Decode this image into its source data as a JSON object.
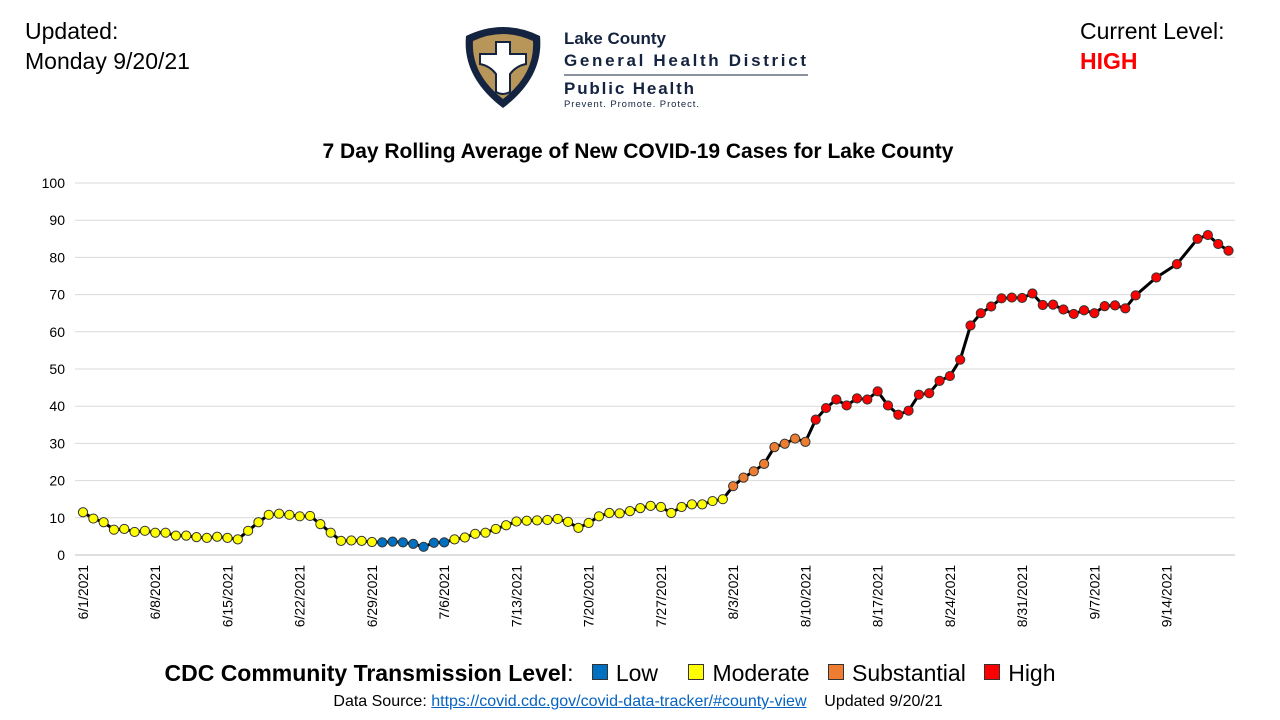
{
  "header": {
    "updated_label": "Updated:",
    "updated_date": "Monday 9/20/21",
    "current_level_label": "Current Level:",
    "current_level_value": "HIGH",
    "current_level_color": "#ff0000"
  },
  "logo": {
    "line1": "Lake County",
    "line2": "General Health District",
    "line3": "Public Health",
    "tagline": "Prevent. Promote. Protect.",
    "colors": {
      "navy": "#14233f",
      "gold": "#b8965a"
    }
  },
  "legend": {
    "title": "CDC Community Transmission Level",
    "colon": ":",
    "items": [
      {
        "label": "Low",
        "color": "#0070c0"
      },
      {
        "label": "Moderate",
        "color": "#ffff00"
      },
      {
        "label": "Substantial",
        "color": "#ed7d31"
      },
      {
        "label": "High",
        "color": "#ff0000"
      }
    ]
  },
  "source": {
    "prefix": "Data Source: ",
    "link": "https://covid.cdc.gov/covid-data-tracker/#county-view",
    "suffix": "Updated 9/20/21"
  },
  "chart_data": {
    "type": "line",
    "title": "7 Day Rolling Average of New COVID-19 Cases for Lake County",
    "xlabel": "",
    "ylabel": "",
    "ylim": [
      0,
      100
    ],
    "y_ticks": [
      "0",
      "10",
      "20",
      "30",
      "40",
      "50",
      "60",
      "70",
      "80",
      "90",
      "100"
    ],
    "x_ticks": [
      "6/1/2021",
      "6/8/2021",
      "6/15/2021",
      "6/22/2021",
      "6/29/2021",
      "7/6/2021",
      "7/13/2021",
      "7/20/2021",
      "7/27/2021",
      "8/3/2021",
      "8/10/2021",
      "8/17/2021",
      "8/24/2021",
      "8/31/2021",
      "9/7/2021",
      "9/14/2021"
    ],
    "grid": "horizontal",
    "line_color": "#000000",
    "points": [
      {
        "d": "6/1",
        "v": 11.5,
        "l": "Moderate"
      },
      {
        "d": "6/2",
        "v": 9.8,
        "l": "Moderate"
      },
      {
        "d": "6/3",
        "v": 8.8,
        "l": "Moderate"
      },
      {
        "d": "6/4",
        "v": 6.8,
        "l": "Moderate"
      },
      {
        "d": "6/5",
        "v": 7.0,
        "l": "Moderate"
      },
      {
        "d": "6/6",
        "v": 6.2,
        "l": "Moderate"
      },
      {
        "d": "6/7",
        "v": 6.5,
        "l": "Moderate"
      },
      {
        "d": "6/8",
        "v": 6.0,
        "l": "Moderate"
      },
      {
        "d": "6/9",
        "v": 6.0,
        "l": "Moderate"
      },
      {
        "d": "6/10",
        "v": 5.2,
        "l": "Moderate"
      },
      {
        "d": "6/11",
        "v": 5.2,
        "l": "Moderate"
      },
      {
        "d": "6/12",
        "v": 4.8,
        "l": "Moderate"
      },
      {
        "d": "6/13",
        "v": 4.6,
        "l": "Moderate"
      },
      {
        "d": "6/14",
        "v": 4.9,
        "l": "Moderate"
      },
      {
        "d": "6/15",
        "v": 4.6,
        "l": "Moderate"
      },
      {
        "d": "6/16",
        "v": 4.2,
        "l": "Moderate"
      },
      {
        "d": "6/17",
        "v": 6.5,
        "l": "Moderate"
      },
      {
        "d": "6/18",
        "v": 8.8,
        "l": "Moderate"
      },
      {
        "d": "6/19",
        "v": 10.8,
        "l": "Moderate"
      },
      {
        "d": "6/20",
        "v": 11.1,
        "l": "Moderate"
      },
      {
        "d": "6/21",
        "v": 10.8,
        "l": "Moderate"
      },
      {
        "d": "6/22",
        "v": 10.4,
        "l": "Moderate"
      },
      {
        "d": "6/23",
        "v": 10.5,
        "l": "Moderate"
      },
      {
        "d": "6/24",
        "v": 8.3,
        "l": "Moderate"
      },
      {
        "d": "6/25",
        "v": 6.0,
        "l": "Moderate"
      },
      {
        "d": "6/26",
        "v": 3.8,
        "l": "Moderate"
      },
      {
        "d": "6/27",
        "v": 3.9,
        "l": "Moderate"
      },
      {
        "d": "6/28",
        "v": 3.8,
        "l": "Moderate"
      },
      {
        "d": "6/29",
        "v": 3.5,
        "l": "Moderate"
      },
      {
        "d": "6/30",
        "v": 3.4,
        "l": "Low"
      },
      {
        "d": "7/1",
        "v": 3.6,
        "l": "Low"
      },
      {
        "d": "7/2",
        "v": 3.4,
        "l": "Low"
      },
      {
        "d": "7/3",
        "v": 3.0,
        "l": "Low"
      },
      {
        "d": "7/4",
        "v": 2.2,
        "l": "Low"
      },
      {
        "d": "7/5",
        "v": 3.3,
        "l": "Low"
      },
      {
        "d": "7/6",
        "v": 3.4,
        "l": "Low"
      },
      {
        "d": "7/7",
        "v": 4.2,
        "l": "Moderate"
      },
      {
        "d": "7/8",
        "v": 4.7,
        "l": "Moderate"
      },
      {
        "d": "7/9",
        "v": 5.7,
        "l": "Moderate"
      },
      {
        "d": "7/10",
        "v": 6.0,
        "l": "Moderate"
      },
      {
        "d": "7/11",
        "v": 7.0,
        "l": "Moderate"
      },
      {
        "d": "7/12",
        "v": 8.0,
        "l": "Moderate"
      },
      {
        "d": "7/13",
        "v": 9.0,
        "l": "Moderate"
      },
      {
        "d": "7/14",
        "v": 9.2,
        "l": "Moderate"
      },
      {
        "d": "7/15",
        "v": 9.3,
        "l": "Moderate"
      },
      {
        "d": "7/16",
        "v": 9.4,
        "l": "Moderate"
      },
      {
        "d": "7/17",
        "v": 9.7,
        "l": "Moderate"
      },
      {
        "d": "7/18",
        "v": 8.9,
        "l": "Moderate"
      },
      {
        "d": "7/19",
        "v": 7.3,
        "l": "Moderate"
      },
      {
        "d": "7/20",
        "v": 8.6,
        "l": "Moderate"
      },
      {
        "d": "7/21",
        "v": 10.4,
        "l": "Moderate"
      },
      {
        "d": "7/22",
        "v": 11.3,
        "l": "Moderate"
      },
      {
        "d": "7/23",
        "v": 11.2,
        "l": "Moderate"
      },
      {
        "d": "7/24",
        "v": 11.8,
        "l": "Moderate"
      },
      {
        "d": "7/25",
        "v": 12.6,
        "l": "Moderate"
      },
      {
        "d": "7/26",
        "v": 13.2,
        "l": "Moderate"
      },
      {
        "d": "7/27",
        "v": 12.9,
        "l": "Moderate"
      },
      {
        "d": "7/28",
        "v": 11.3,
        "l": "Moderate"
      },
      {
        "d": "7/29",
        "v": 12.9,
        "l": "Moderate"
      },
      {
        "d": "7/30",
        "v": 13.6,
        "l": "Moderate"
      },
      {
        "d": "7/31",
        "v": 13.6,
        "l": "Moderate"
      },
      {
        "d": "8/1",
        "v": 14.5,
        "l": "Moderate"
      },
      {
        "d": "8/2",
        "v": 15.0,
        "l": "Moderate"
      },
      {
        "d": "8/3",
        "v": 18.5,
        "l": "Substantial"
      },
      {
        "d": "8/4",
        "v": 20.8,
        "l": "Substantial"
      },
      {
        "d": "8/5",
        "v": 22.5,
        "l": "Substantial"
      },
      {
        "d": "8/6",
        "v": 24.5,
        "l": "Substantial"
      },
      {
        "d": "8/7",
        "v": 29.0,
        "l": "Substantial"
      },
      {
        "d": "8/8",
        "v": 29.9,
        "l": "Substantial"
      },
      {
        "d": "8/9",
        "v": 31.3,
        "l": "Substantial"
      },
      {
        "d": "8/10",
        "v": 30.4,
        "l": "Substantial"
      },
      {
        "d": "8/11",
        "v": 36.4,
        "l": "High"
      },
      {
        "d": "8/12",
        "v": 39.5,
        "l": "High"
      },
      {
        "d": "8/13",
        "v": 41.8,
        "l": "High"
      },
      {
        "d": "8/14",
        "v": 40.2,
        "l": "High"
      },
      {
        "d": "8/15",
        "v": 42.1,
        "l": "High"
      },
      {
        "d": "8/16",
        "v": 41.8,
        "l": "High"
      },
      {
        "d": "8/17",
        "v": 44.0,
        "l": "High"
      },
      {
        "d": "8/18",
        "v": 40.2,
        "l": "High"
      },
      {
        "d": "8/19",
        "v": 37.7,
        "l": "High"
      },
      {
        "d": "8/20",
        "v": 38.8,
        "l": "High"
      },
      {
        "d": "8/21",
        "v": 43.1,
        "l": "High"
      },
      {
        "d": "8/22",
        "v": 43.5,
        "l": "High"
      },
      {
        "d": "8/23",
        "v": 46.8,
        "l": "High"
      },
      {
        "d": "8/24",
        "v": 48.1,
        "l": "High"
      },
      {
        "d": "8/25",
        "v": 52.5,
        "l": "High"
      },
      {
        "d": "8/26",
        "v": 61.7,
        "l": "High"
      },
      {
        "d": "8/27",
        "v": 65.0,
        "l": "High"
      },
      {
        "d": "8/28",
        "v": 66.8,
        "l": "High"
      },
      {
        "d": "8/29",
        "v": 69.0,
        "l": "High"
      },
      {
        "d": "8/30",
        "v": 69.2,
        "l": "High"
      },
      {
        "d": "8/31",
        "v": 69.1,
        "l": "High"
      },
      {
        "d": "9/1",
        "v": 70.3,
        "l": "High"
      },
      {
        "d": "9/2",
        "v": 67.2,
        "l": "High"
      },
      {
        "d": "9/3",
        "v": 67.3,
        "l": "High"
      },
      {
        "d": "9/4",
        "v": 66.0,
        "l": "High"
      },
      {
        "d": "9/5",
        "v": 64.8,
        "l": "High"
      },
      {
        "d": "9/6",
        "v": 65.8,
        "l": "High"
      },
      {
        "d": "9/7",
        "v": 65.0,
        "l": "High"
      },
      {
        "d": "9/8",
        "v": 66.9,
        "l": "High"
      },
      {
        "d": "9/9",
        "v": 67.1,
        "l": "High"
      },
      {
        "d": "9/10",
        "v": 66.3,
        "l": "High"
      },
      {
        "d": "9/11",
        "v": 69.8,
        "l": "High"
      },
      {
        "d": "9/13",
        "v": 74.6,
        "l": "High"
      },
      {
        "d": "9/15",
        "v": 78.2,
        "l": "High"
      },
      {
        "d": "9/17",
        "v": 85.0,
        "l": "High"
      },
      {
        "d": "9/18",
        "v": 86.0,
        "l": "High"
      },
      {
        "d": "9/19",
        "v": 83.6,
        "l": "High"
      },
      {
        "d": "9/20",
        "v": 81.8,
        "l": "High"
      }
    ]
  }
}
